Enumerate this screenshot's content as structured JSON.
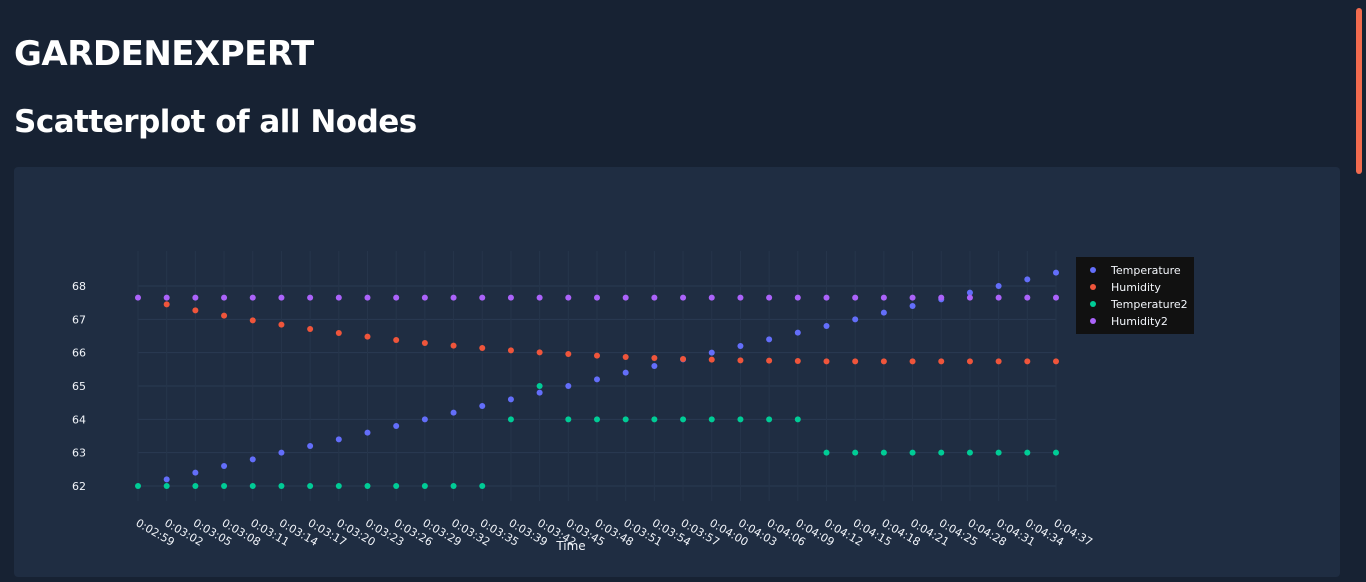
{
  "header": {
    "app_title": "GARDENEXPERT",
    "section_title": "Scatterplot of all Nodes"
  },
  "colors": {
    "page_background": "#172233",
    "card_background": "#1f2d42",
    "scroll_thumb": "#f26b4f"
  },
  "chart_data": {
    "type": "scatter",
    "xlabel": "Time",
    "ylabel": "",
    "ylim": [
      61.55,
      69.05
    ],
    "yticks": [
      62,
      63,
      64,
      65,
      66,
      67,
      68
    ],
    "x": [
      "0:02:59",
      "0:03:02",
      "0:03:05",
      "0:03:08",
      "0:03:11",
      "0:03:14",
      "0:03:17",
      "0:03:20",
      "0:03:23",
      "0:03:26",
      "0:03:29",
      "0:03:32",
      "0:03:35",
      "0:03:39",
      "0:03:42",
      "0:03:45",
      "0:03:48",
      "0:03:51",
      "0:03:54",
      "0:03:57",
      "0:04:00",
      "0:04:03",
      "0:04:06",
      "0:04:09",
      "0:04:12",
      "0:04:15",
      "0:04:18",
      "0:04:21",
      "0:04:25",
      "0:04:28",
      "0:04:31",
      "0:04:34",
      "0:04:37"
    ],
    "grid": true,
    "legend_position": "top-right",
    "series": [
      {
        "name": "Temperature",
        "color": "#636efa",
        "values": [
          null,
          62.2,
          62.4,
          62.6,
          62.8,
          63.0,
          63.2,
          63.4,
          63.6,
          63.8,
          64.0,
          64.2,
          64.4,
          64.6,
          64.8,
          65.0,
          65.2,
          65.4,
          65.6,
          65.8,
          66.0,
          66.2,
          66.4,
          66.6,
          66.8,
          67.0,
          67.2,
          67.4,
          67.6,
          67.8,
          68.0,
          68.2,
          68.4
        ]
      },
      {
        "name": "Humidity",
        "color": "#ef553b",
        "values": [
          null,
          67.45,
          67.27,
          67.11,
          66.97,
          66.84,
          66.71,
          66.59,
          66.48,
          66.38,
          66.29,
          66.21,
          66.14,
          66.07,
          66.01,
          65.96,
          65.91,
          65.87,
          65.84,
          65.81,
          65.79,
          65.77,
          65.76,
          65.75,
          65.74,
          65.74,
          65.74,
          65.74,
          65.74,
          65.74,
          65.74,
          65.74,
          65.74
        ]
      },
      {
        "name": "Temperature2",
        "color": "#00cc96",
        "values": [
          62,
          62,
          62,
          62,
          62,
          62,
          62,
          62,
          62,
          62,
          62,
          62,
          62,
          64,
          65,
          64,
          64,
          64,
          64,
          64,
          64,
          64,
          64,
          64,
          63,
          63,
          63,
          63,
          63,
          63,
          63,
          63,
          63
        ]
      },
      {
        "name": "Humidity2",
        "color": "#ab63fa",
        "values": [
          67.65,
          67.65,
          67.65,
          67.65,
          67.65,
          67.65,
          67.65,
          67.65,
          67.65,
          67.65,
          67.65,
          67.65,
          67.65,
          67.65,
          67.65,
          67.65,
          67.65,
          67.65,
          67.65,
          67.65,
          67.65,
          67.65,
          67.65,
          67.65,
          67.65,
          67.65,
          67.65,
          67.65,
          67.65,
          67.65,
          67.65,
          67.65,
          67.65
        ]
      }
    ]
  }
}
